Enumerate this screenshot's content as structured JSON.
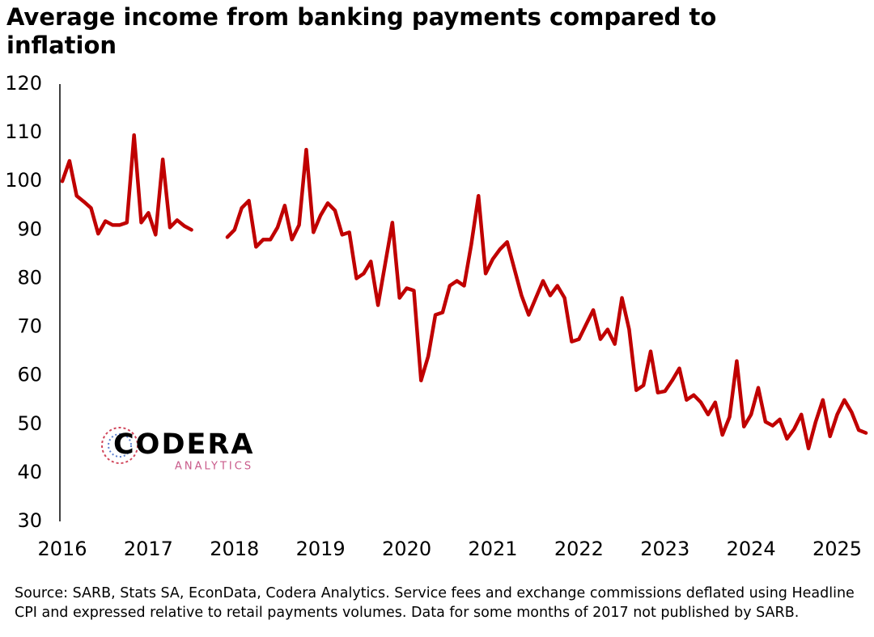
{
  "chart_data": {
    "type": "line",
    "title": "Average income from banking payments compared to inflation",
    "source": "Source: SARB, Stats SA, EconData, Codera Analytics. Service fees and exchange commissions deflated using Headline CPI and expressed relative to retail payments volumes. Data for some months of 2017 not published by SARB.",
    "logo": {
      "name": "CODERA",
      "tagline": "ANALYTICS"
    },
    "categories": [
      "2016",
      null,
      null,
      null,
      null,
      null,
      null,
      null,
      null,
      null,
      null,
      null,
      "2017",
      null,
      null,
      null,
      null,
      null,
      null,
      null,
      null,
      null,
      null,
      null,
      "2018",
      null,
      null,
      null,
      null,
      null,
      null,
      null,
      null,
      null,
      null,
      null,
      "2019",
      null,
      null,
      null,
      null,
      null,
      null,
      null,
      null,
      null,
      null,
      null,
      "2020",
      null,
      null,
      null,
      null,
      null,
      null,
      null,
      null,
      null,
      null,
      null,
      "2021",
      null,
      null,
      null,
      null,
      null,
      null,
      null,
      null,
      null,
      null,
      null,
      "2022",
      null,
      null,
      null,
      null,
      null,
      null,
      null,
      null,
      null,
      null,
      null,
      "2023",
      null,
      null,
      null,
      null,
      null,
      null,
      null,
      null,
      null,
      null,
      null,
      "2024",
      null,
      null,
      null,
      null,
      null,
      null,
      null,
      null,
      null,
      null,
      null,
      "2025",
      null,
      null,
      null,
      null
    ],
    "series": [
      {
        "color": "#c00000",
        "values": [
          100,
          104.2,
          97,
          95.8,
          94.5,
          89.2,
          91.8,
          91,
          91,
          91.5,
          109.5,
          91.5,
          93.5,
          89,
          104.5,
          90.5,
          92,
          90.8,
          90,
          null,
          null,
          null,
          null,
          88.5,
          90,
          94.5,
          96,
          86.5,
          88,
          88,
          90.5,
          95,
          88,
          91,
          106.5,
          89.5,
          93,
          95.5,
          94,
          89,
          89.5,
          80,
          81,
          83.5,
          74.5,
          83,
          91.5,
          76,
          78,
          77.5,
          59,
          64,
          72.5,
          73,
          78.5,
          79.5,
          78.5,
          87,
          97,
          81,
          84,
          86,
          87.5,
          82,
          76.5,
          72.5,
          76,
          79.5,
          76.5,
          78.5,
          76,
          67,
          67.5,
          70.5,
          73.5,
          67.5,
          69.5,
          66.5,
          76,
          69.5,
          57,
          58,
          65,
          56.5,
          56.8,
          59,
          61.5,
          55,
          56,
          54.5,
          52,
          54.5,
          47.8,
          51.5,
          63,
          49.5,
          52,
          57.5,
          50.5,
          49.7,
          51,
          47,
          49,
          52,
          45,
          50.5,
          55,
          47.5,
          52,
          55,
          52.5,
          48.8,
          48.2
        ]
      }
    ],
    "ylim": [
      30,
      120
    ],
    "yticks": [
      30,
      40,
      50,
      60,
      70,
      80,
      90,
      100,
      110,
      120
    ],
    "grid": false
  }
}
